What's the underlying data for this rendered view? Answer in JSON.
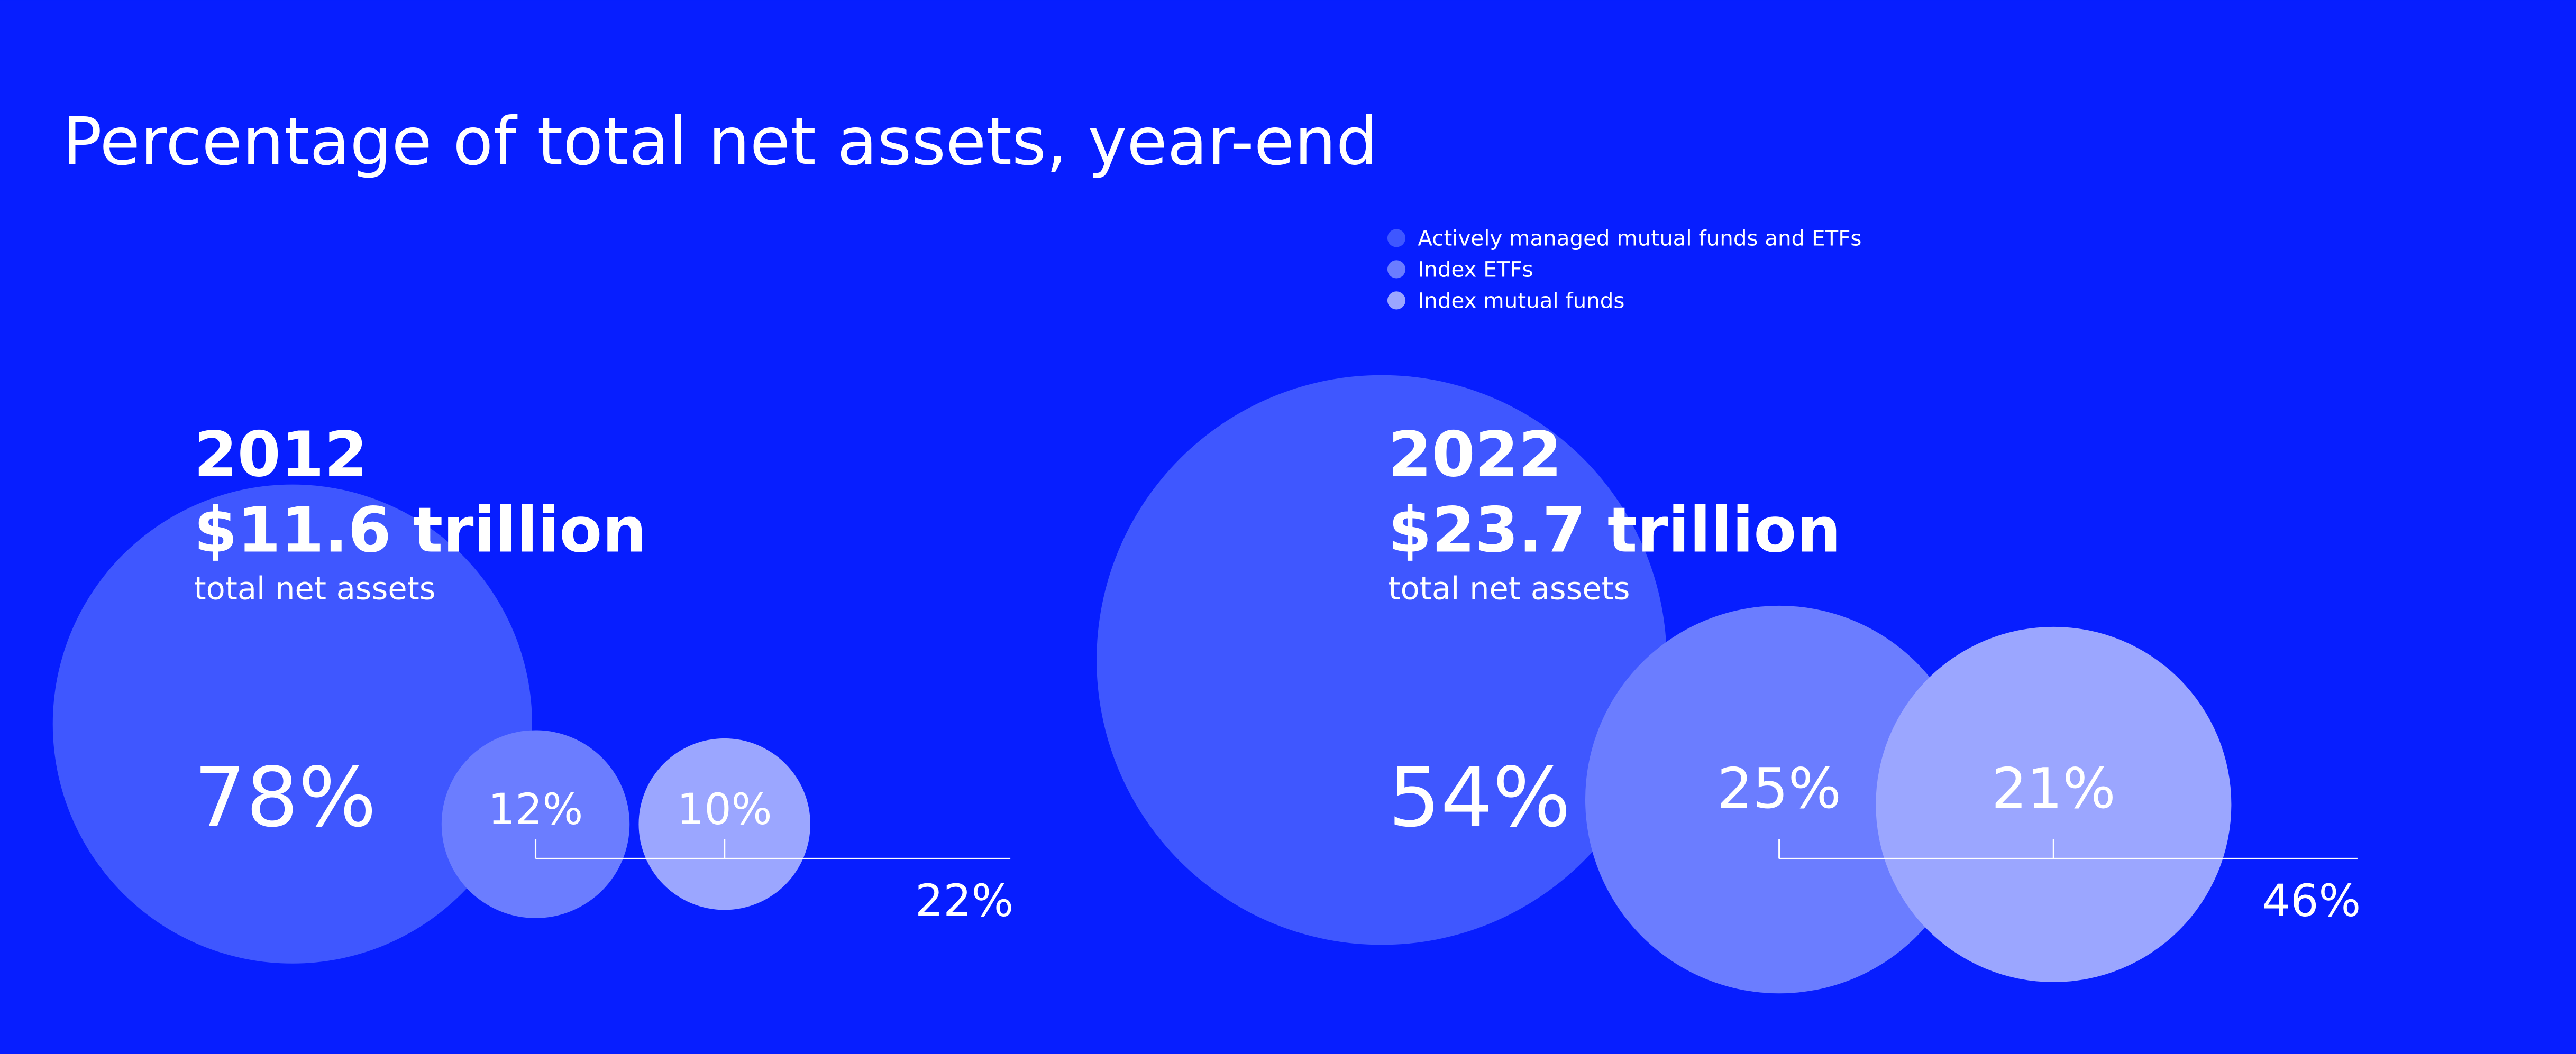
{
  "title": "Percentage of total net assets, year-end",
  "legend": [
    {
      "name": "Actively managed mutual funds and ETFs",
      "color": "#3f57ff"
    },
    {
      "name": "Index ETFs",
      "color": "#6b7dff"
    },
    {
      "name": "Index mutual funds",
      "color": "#9ba6ff"
    }
  ],
  "chart_data": [
    {
      "type": "bubble",
      "year": "2012",
      "total": {
        "value": 11.6,
        "label": "$11.6 trillion"
      },
      "subtitle": "total net assets",
      "values": [
        78,
        12,
        10
      ],
      "value_labels": [
        "78%",
        "12%",
        "10%"
      ],
      "index_total": 22,
      "index_total_label": "22%"
    },
    {
      "type": "bubble",
      "year": "2022",
      "total": {
        "value": 23.7,
        "label": "$23.7 trillion"
      },
      "subtitle": "total net assets",
      "values": [
        54,
        25,
        21
      ],
      "value_labels": [
        "54%",
        "25%",
        "21%"
      ],
      "index_total": 46,
      "index_total_label": "46%"
    }
  ]
}
